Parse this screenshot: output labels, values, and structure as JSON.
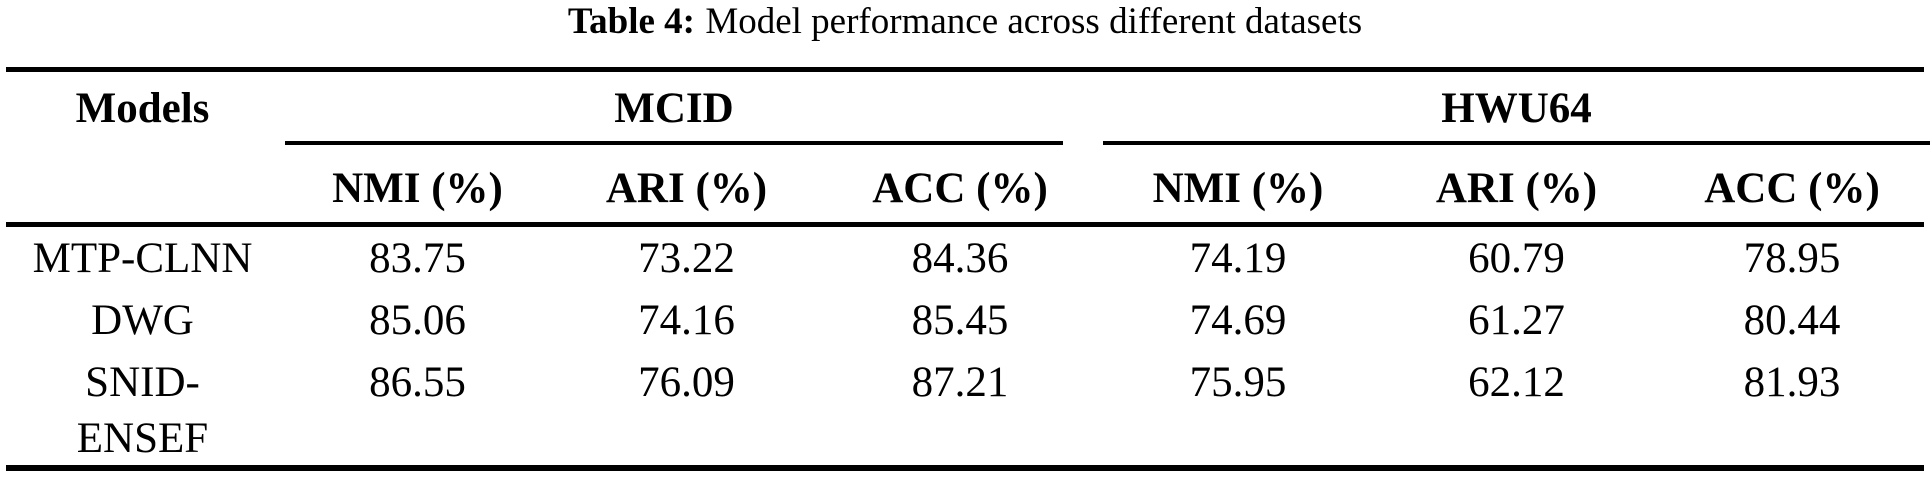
{
  "caption": {
    "label": "Table 4:",
    "text": "Model performance across different datasets"
  },
  "table": {
    "models_header": "Models",
    "groups": [
      {
        "label": "MCID",
        "subcols": [
          "NMI (%)",
          "ARI (%)",
          "ACC (%)"
        ]
      },
      {
        "label": "HWU64",
        "subcols": [
          "NMI (%)",
          "ARI (%)",
          "ACC (%)"
        ]
      }
    ],
    "rows": [
      {
        "model_lines": [
          "MTP-CLNN"
        ],
        "values": [
          "83.75",
          "73.22",
          "84.36",
          "74.19",
          "60.79",
          "78.95"
        ]
      },
      {
        "model_lines": [
          "DWG"
        ],
        "values": [
          "85.06",
          "74.16",
          "85.45",
          "74.69",
          "61.27",
          "80.44"
        ]
      },
      {
        "model_lines": [
          "SNID-",
          "ENSEF"
        ],
        "values": [
          "86.55",
          "76.09",
          "87.21",
          "75.95",
          "62.12",
          "81.93"
        ]
      }
    ]
  },
  "colors": {
    "text": "#000000",
    "rule": "#000000",
    "background": "#ffffff"
  }
}
